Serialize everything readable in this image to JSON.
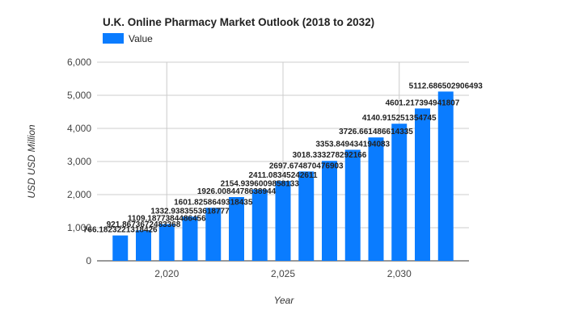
{
  "chart_data": {
    "type": "bar",
    "title": "U.K.  Online Pharmacy Market Outlook (2018 to 2032)",
    "xlabel": "Year",
    "ylabel": "USD USD Million",
    "legend": {
      "position": "top-left",
      "entries": [
        "Value"
      ]
    },
    "series": [
      {
        "name": "Value",
        "color": "#0a7cff",
        "x": [
          2018,
          2019,
          2020,
          2021,
          2022,
          2023,
          2024,
          2025,
          2026,
          2027,
          2028,
          2029,
          2030,
          2031,
          2032
        ],
        "values": [
          766.1823221318426,
          921.8673672483368,
          1109.1877384486456,
          1332.9383553618777,
          1601.8258649318434,
          1926.0084478638944,
          2154.9396009858133,
          2411.08345242611,
          2697.674870476903,
          3018.333278292166,
          3353.849434194083,
          3726.661486614335,
          4140.915251354745,
          4601.217394941807,
          5112.686502906493
        ],
        "labels": [
          "766.1823221318426",
          "921.8673672483368",
          "1109.1877384486456",
          "1332.9383553618777",
          "1601.8258649318435",
          "1926.0084478638944",
          "2154.9396009858133",
          "2411.08345242611",
          "2697.674870476903",
          "3018.333278292166",
          "3353.849434194083",
          "3726.661486614335",
          "4140.915251354745",
          "4601.217394941807",
          "5112.686502906493"
        ]
      }
    ],
    "y_ticks": [
      "0",
      "1,000",
      "2,000",
      "3,000",
      "4,000",
      "5,000",
      "6,000"
    ],
    "ylim": [
      0,
      6000
    ],
    "x_ticks": [
      {
        "value": 2020,
        "label": "2,020"
      },
      {
        "value": 2025,
        "label": "2,025"
      },
      {
        "value": 2030,
        "label": "2,030"
      }
    ],
    "xlim": [
      2017,
      2033
    ],
    "grid": true,
    "colors": {
      "bar": "#0a7cff",
      "grid": "#cccccc"
    }
  }
}
